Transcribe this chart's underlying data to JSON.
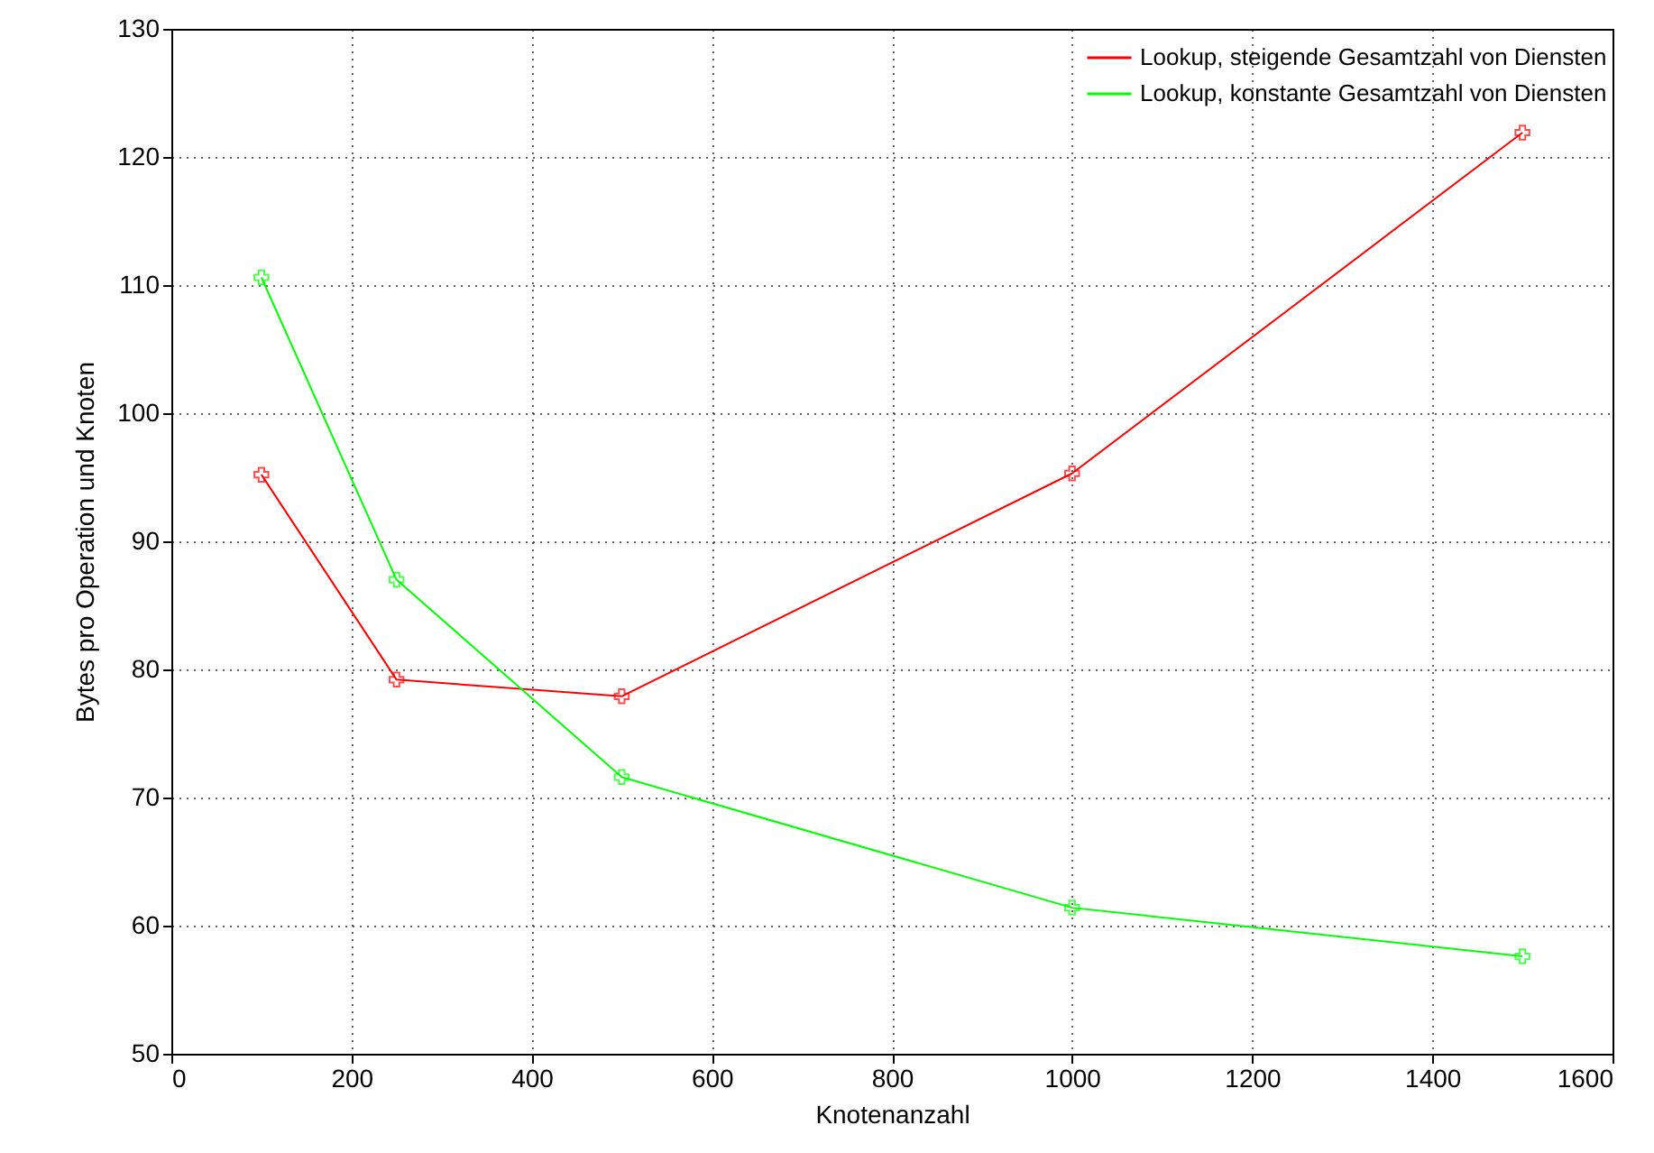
{
  "chart_data": {
    "type": "line",
    "xlabel": "Knotenanzahl",
    "ylabel": "Bytes pro Operation und Knoten",
    "x": [
      100,
      250,
      500,
      1000,
      1500
    ],
    "series": [
      {
        "name": "Lookup, steigende Gesamtzahl von Diensten",
        "color": "#ff0000",
        "values": [
          95.2,
          79.2,
          77.9,
          95.3,
          121.9
        ]
      },
      {
        "name": "Lookup, konstante Gesamtzahl von Diensten",
        "color": "#00ff00",
        "values": [
          110.6,
          87.0,
          71.6,
          61.4,
          57.6
        ]
      }
    ],
    "xlim": [
      0,
      1600
    ],
    "xticks": [
      0,
      200,
      400,
      600,
      800,
      1000,
      1200,
      1400,
      1600
    ],
    "ylim": [
      50,
      130
    ],
    "yticks": [
      50,
      60,
      70,
      80,
      90,
      100,
      110,
      120,
      130
    ],
    "grid": true,
    "legend": "top right",
    "marker": "cross",
    "line_style": "solid"
  }
}
